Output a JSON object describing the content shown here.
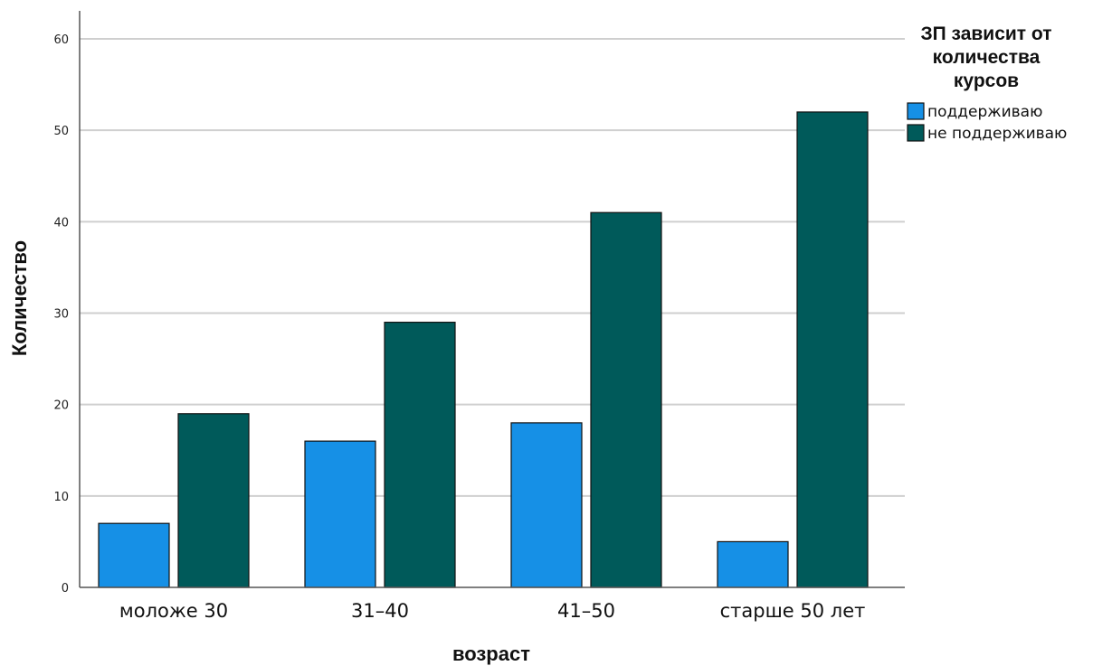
{
  "chart_data": {
    "type": "bar",
    "categories": [
      "моложе 30",
      "31–40",
      "41–50",
      "старше 50 лет"
    ],
    "series": [
      {
        "name": "поддерживаю",
        "values": [
          7,
          16,
          18,
          5
        ],
        "color": "#1690e6"
      },
      {
        "name": "не поддерживаю",
        "values": [
          19,
          29,
          41,
          52
        ],
        "color": "#005a5a"
      }
    ],
    "xlabel": "возраст",
    "ylabel": "Количество",
    "ylim": [
      0,
      60
    ],
    "yticks": [
      0,
      10,
      20,
      30,
      40,
      50,
      60
    ],
    "grid": true,
    "legend": {
      "title_lines": [
        "ЗП зависит от",
        "количества",
        "курсов"
      ],
      "placement": "top-right"
    }
  }
}
